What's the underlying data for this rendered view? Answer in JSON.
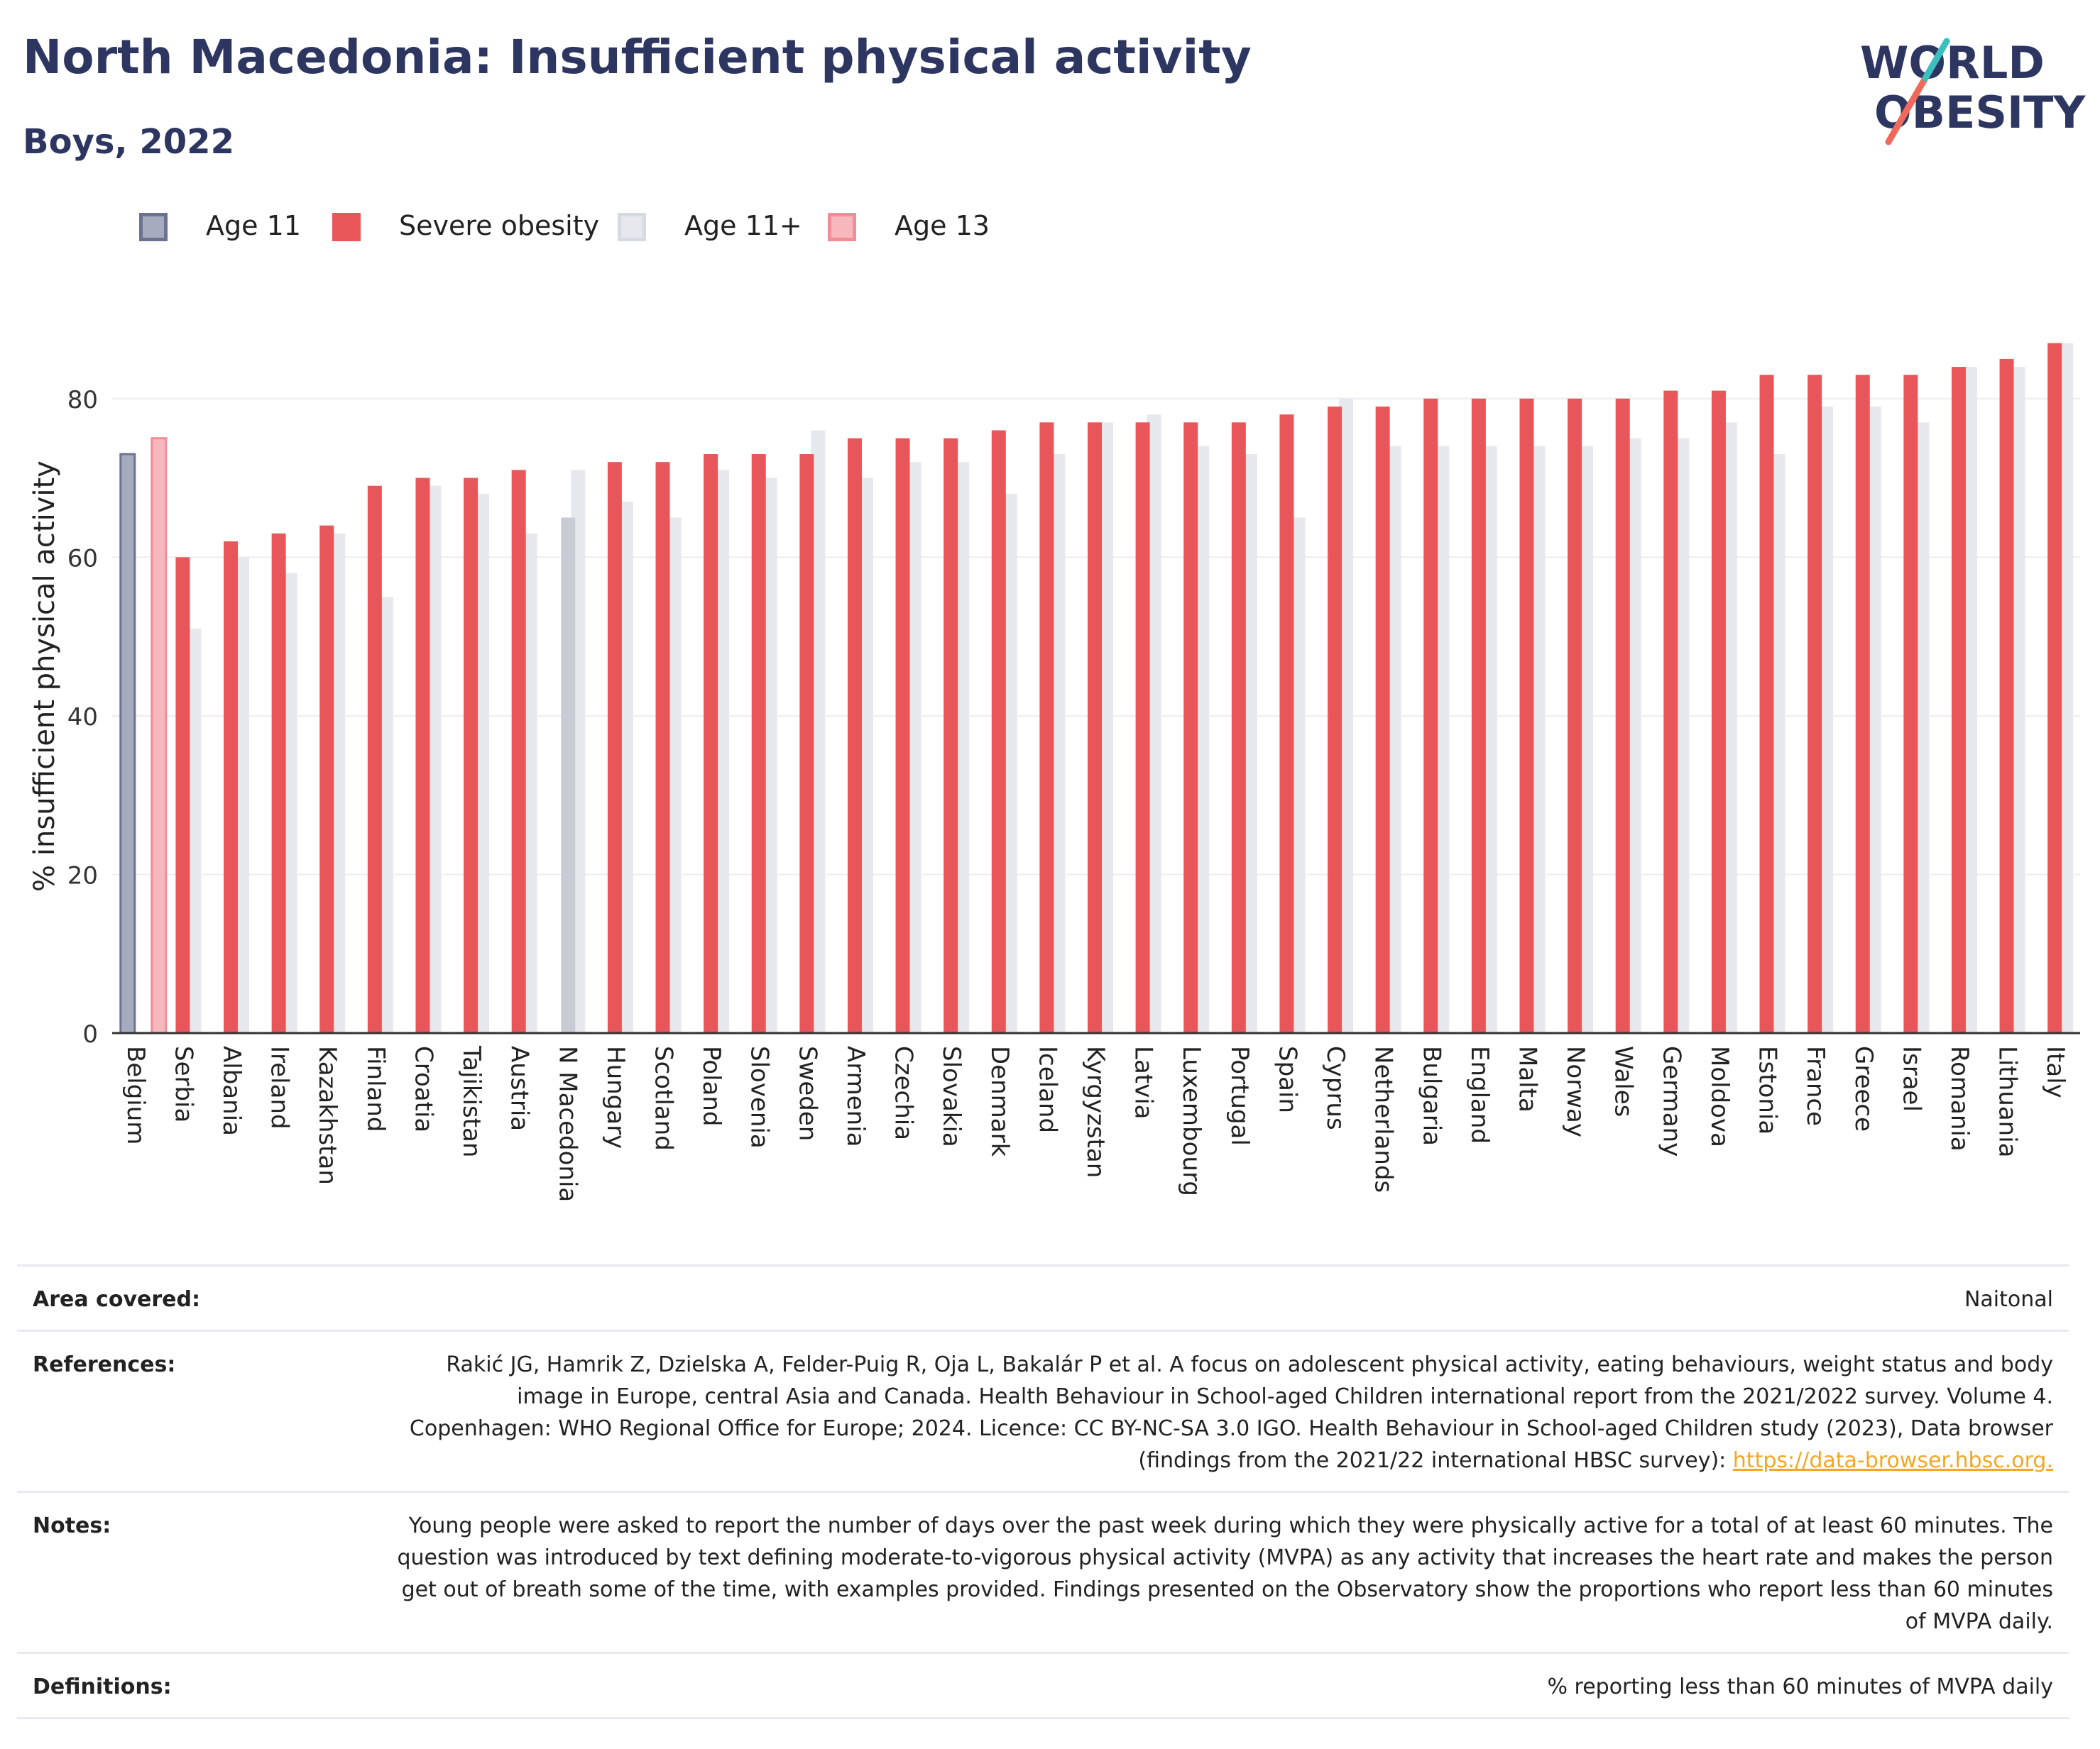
{
  "header": {
    "title": "North Macedonia: Insufficient physical activity",
    "subtitle": "Boys, 2022"
  },
  "logo": {
    "line1": "WORLD",
    "line2": "OBESITY"
  },
  "legend": [
    {
      "label": "Age 11",
      "color": "#a7abbf",
      "border": "#6d7292"
    },
    {
      "label": "Severe obesity",
      "color": "#e8565a",
      "border": "#e8565a"
    },
    {
      "label": "Age 11+",
      "color": "#e7e8ee",
      "border": "#d6d8e2"
    },
    {
      "label": "Age 13",
      "color": "#f6b7bd",
      "border": "#f08d96"
    }
  ],
  "chart_data": {
    "type": "bar",
    "ylabel": "% insufficient physical activity",
    "ylim": [
      0,
      90
    ],
    "yticks": [
      0,
      20,
      40,
      60,
      80
    ],
    "grid": true,
    "categories": [
      "Belgium",
      "Serbia",
      "Albania",
      "Ireland",
      "Kazakhstan",
      "Finland",
      "Croatia",
      "Tajikistan",
      "Austria",
      "N Macedonia",
      "Hungary",
      "Scotland",
      "Poland",
      "Slovenia",
      "Sweden",
      "Armenia",
      "Czechia",
      "Slovakia",
      "Denmark",
      "Iceland",
      "Kyrgyzstan",
      "Latvia",
      "Luxembourg",
      "Portugal",
      "Spain",
      "Cyprus",
      "Netherlands",
      "Bulgaria",
      "England",
      "Malta",
      "Norway",
      "Wales",
      "Germany",
      "Moldova",
      "Estonia",
      "France",
      "Greece",
      "Israel",
      "Romania",
      "Lithuania",
      "Italy"
    ],
    "series": [
      {
        "name": "Age 11",
        "values": [
          73,
          null,
          null,
          null,
          null,
          null,
          null,
          null,
          null,
          null,
          null,
          null,
          null,
          null,
          null,
          null,
          null,
          null,
          null,
          null,
          null,
          null,
          null,
          null,
          null,
          null,
          null,
          null,
          null,
          null,
          null,
          null,
          null,
          null,
          null,
          null,
          null,
          null,
          null,
          null,
          null
        ]
      },
      {
        "name": "Age 13",
        "values": [
          75,
          null,
          null,
          null,
          null,
          null,
          null,
          null,
          null,
          null,
          null,
          null,
          null,
          null,
          null,
          null,
          null,
          null,
          null,
          null,
          null,
          null,
          null,
          null,
          null,
          null,
          null,
          null,
          null,
          null,
          null,
          null,
          null,
          null,
          null,
          null,
          null,
          null,
          null,
          null,
          null
        ]
      },
      {
        "name": "Severe obesity",
        "values": [
          null,
          60,
          62,
          63,
          64,
          69,
          70,
          70,
          71,
          null,
          72,
          72,
          73,
          73,
          73,
          75,
          75,
          75,
          76,
          77,
          77,
          77,
          77,
          77,
          78,
          79,
          79,
          80,
          80,
          80,
          80,
          80,
          81,
          81,
          83,
          83,
          83,
          83,
          84,
          85,
          87
        ]
      },
      {
        "name": "Age 11+",
        "values": [
          null,
          51,
          60,
          58,
          63,
          55,
          69,
          68,
          63,
          71,
          67,
          65,
          71,
          70,
          76,
          70,
          72,
          72,
          68,
          73,
          77,
          78,
          74,
          73,
          65,
          80,
          74,
          74,
          74,
          74,
          74,
          75,
          75,
          77,
          73,
          79,
          79,
          77,
          84,
          84,
          87
        ]
      },
      {
        "name": "N Macedonia Age 11+",
        "values": [
          null,
          null,
          null,
          null,
          null,
          null,
          null,
          null,
          null,
          65,
          null,
          null,
          null,
          null,
          null,
          null,
          null,
          null,
          null,
          null,
          null,
          null,
          null,
          null,
          null,
          null,
          null,
          null,
          null,
          null,
          null,
          null,
          null,
          null,
          null,
          null,
          null,
          null,
          null,
          null,
          null
        ]
      }
    ],
    "colors": {
      "age11": "#a7abbf",
      "severe": "#e8565a",
      "age11plus": "#e7e8ee",
      "age13": "#f6b7bd",
      "highlight": "#c9cbd4"
    }
  },
  "footer": {
    "area_label": "Area covered:",
    "area_value": "Naitonal",
    "references_label": "References:",
    "references_value": "Rakić JG, Hamrik Z, Dzielska A, Felder-Puig R, Oja L, Bakalár P et al. A focus on adolescent physical activity, eating behaviours, weight status and body image in Europe, central Asia and Canada. Health Behaviour in School-aged Children international report from the 2021/2022 survey. Volume 4. Copenhagen: WHO Regional Office for Europe; 2024. Licence: CC BY-NC-SA 3.0 IGO. Health Behaviour in School-aged Children study (2023), Data browser (findings from the 2021/22 international HBSC survey): ",
    "references_link": "https://data-browser.hbsc.org.",
    "notes_label": "Notes:",
    "notes_value": "Young people were asked to report the number of days over the past week during which they were physically active for a total of at least 60 minutes. The question was introduced by text defining moderate-to-vigorous physical activity (MVPA) as any activity that increases the heart rate and makes the person get out of breath some of the time, with examples provided. Findings presented on the Observatory show the proportions who report less than 60 minutes of MVPA daily.",
    "definitions_label": "Definitions:",
    "definitions_value": "% reporting less than 60 minutes of MVPA daily"
  }
}
